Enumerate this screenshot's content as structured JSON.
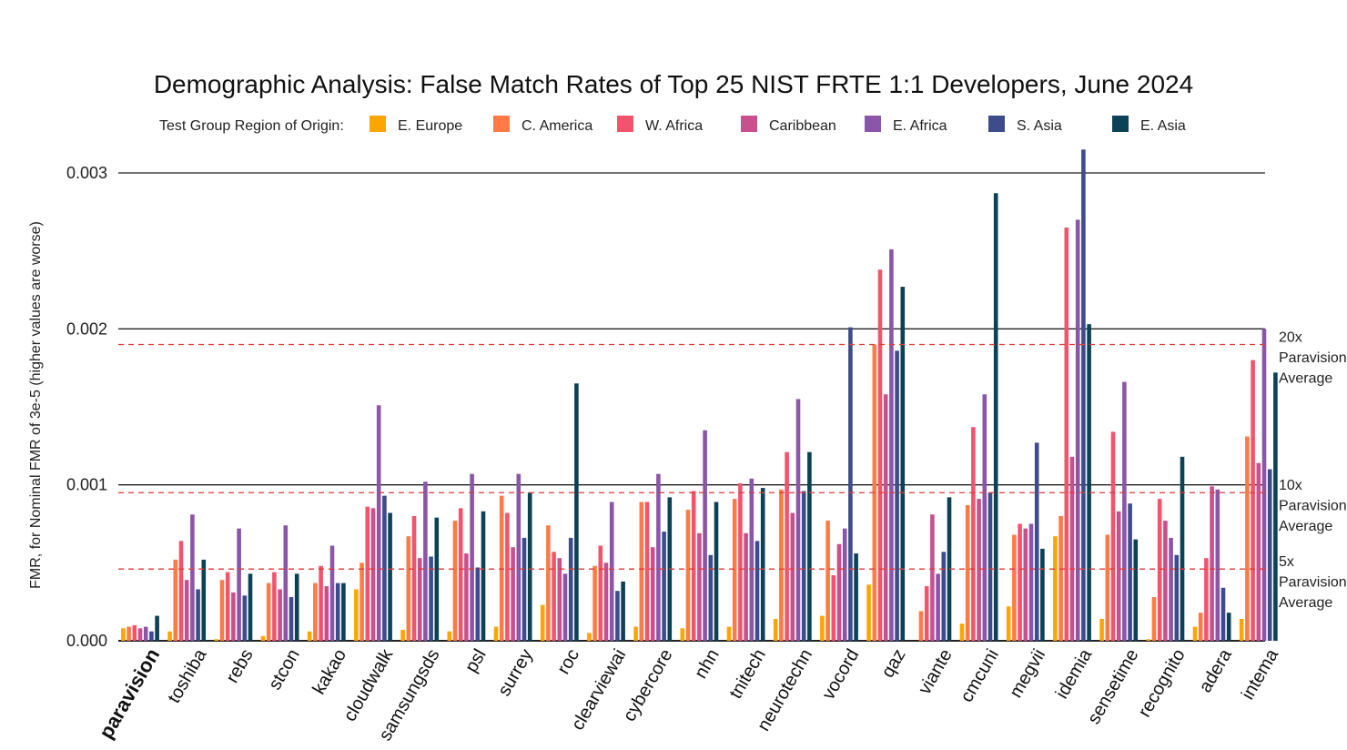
{
  "chart_data": {
    "type": "bar",
    "title": "Demographic Analysis: False Match Rates of Top 25 NIST FRTE 1:1 Developers, June 2024",
    "legend_title": "Test Group Region of Origin:",
    "legend_position": "top",
    "ylabel": "FMR, for Nominal FMR of 3e-5 (higher values are worse)",
    "xlabel": "",
    "ylim": [
      0,
      0.0031
    ],
    "yticks": [
      "0.000",
      "0.001",
      "0.002",
      "0.003"
    ],
    "ytick_values": [
      0,
      0.001,
      0.002,
      0.003
    ],
    "grid": "horizontal at major ticks",
    "categories": [
      "paravision",
      "toshiba",
      "rebs",
      "stcon",
      "kakao",
      "cloudwalk",
      "samsungsds",
      "psl",
      "surrey",
      "roc",
      "clearviewai",
      "cybercore",
      "nhn",
      "tnitech",
      "neurotechn",
      "vocord",
      "qaz",
      "viante",
      "cmcuni",
      "megvii",
      "idemia",
      "sensetime",
      "recognito",
      "adera",
      "intema"
    ],
    "highlight_category": "paravision",
    "series": [
      {
        "name": "E. Europe",
        "color": "#FFA500",
        "values": [
          8e-05,
          6e-05,
          1e-05,
          3e-05,
          6e-05,
          0.00033,
          7e-05,
          6e-05,
          9e-05,
          0.00023,
          5e-05,
          9e-05,
          8e-05,
          9e-05,
          0.00014,
          0.00016,
          0.00036,
          0.0,
          0.00011,
          0.00022,
          0.00067,
          0.00014,
          1e-05,
          9e-05,
          0.00014
        ]
      },
      {
        "name": "C. America",
        "color": "#FF7A45",
        "values": [
          9e-05,
          0.00052,
          0.00039,
          0.00037,
          0.00037,
          0.0005,
          0.00067,
          0.00077,
          0.00093,
          0.00074,
          0.00048,
          0.00089,
          0.00084,
          0.00091,
          0.00097,
          0.00077,
          0.0019,
          0.00019,
          0.00087,
          0.00068,
          0.0008,
          0.00068,
          0.00028,
          0.00018,
          0.00131
        ]
      },
      {
        "name": "W. Africa",
        "color": "#F2546E",
        "values": [
          0.0001,
          0.00064,
          0.00044,
          0.00044,
          0.00048,
          0.00086,
          0.0008,
          0.00085,
          0.00082,
          0.00057,
          0.00061,
          0.00089,
          0.00096,
          0.00101,
          0.00121,
          0.00042,
          0.00238,
          0.00035,
          0.00137,
          0.00075,
          0.00265,
          0.00134,
          0.00091,
          0.00053,
          0.0018
        ]
      },
      {
        "name": "Caribbean",
        "color": "#C8508E",
        "values": [
          8e-05,
          0.00039,
          0.00031,
          0.00033,
          0.00035,
          0.00085,
          0.00053,
          0.00056,
          0.0006,
          0.00053,
          0.0005,
          0.0006,
          0.00069,
          0.00069,
          0.00082,
          0.00062,
          0.00158,
          0.00081,
          0.00091,
          0.00072,
          0.00118,
          0.00083,
          0.00077,
          0.00099,
          0.00114
        ]
      },
      {
        "name": "E. Africa",
        "color": "#8B56A8",
        "values": [
          9e-05,
          0.00081,
          0.00072,
          0.00074,
          0.00061,
          0.00151,
          0.00102,
          0.00107,
          0.00107,
          0.00043,
          0.00089,
          0.00107,
          0.00135,
          0.00104,
          0.00155,
          0.00072,
          0.00251,
          0.00043,
          0.00158,
          0.00075,
          0.0027,
          0.00166,
          0.00066,
          0.00097,
          0.002
        ]
      },
      {
        "name": "S. Asia",
        "color": "#3D4C8A",
        "values": [
          6e-05,
          0.00033,
          0.00029,
          0.00028,
          0.00037,
          0.00093,
          0.00054,
          0.00047,
          0.00066,
          0.00066,
          0.00032,
          0.0007,
          0.00055,
          0.00064,
          0.00096,
          0.00201,
          0.00186,
          0.00057,
          0.00095,
          0.00127,
          0.00315,
          0.00088,
          0.00055,
          0.00034,
          0.0011
        ]
      },
      {
        "name": "E. Asia",
        "color": "#0C4256",
        "values": [
          0.00016,
          0.00052,
          0.00043,
          0.00043,
          0.00037,
          0.00082,
          0.00079,
          0.00083,
          0.00095,
          0.00165,
          0.00038,
          0.00092,
          0.00089,
          0.00098,
          0.00121,
          0.00056,
          0.00227,
          0.00092,
          0.00287,
          0.00059,
          0.00203,
          0.00065,
          0.00118,
          0.00018,
          0.00172
        ]
      }
    ],
    "reference_lines": [
      {
        "value": 0.00046,
        "lines": [
          "5x",
          "Paravision",
          "Average"
        ],
        "color": "#E53935",
        "style": "dashed"
      },
      {
        "value": 0.00095,
        "lines": [
          "10x",
          "Paravision",
          "Average"
        ],
        "color": "#E53935",
        "style": "dashed"
      },
      {
        "value": 0.0019,
        "lines": [
          "20x",
          "Paravision",
          "Average"
        ],
        "color": "#E53935",
        "style": "dashed"
      }
    ]
  }
}
